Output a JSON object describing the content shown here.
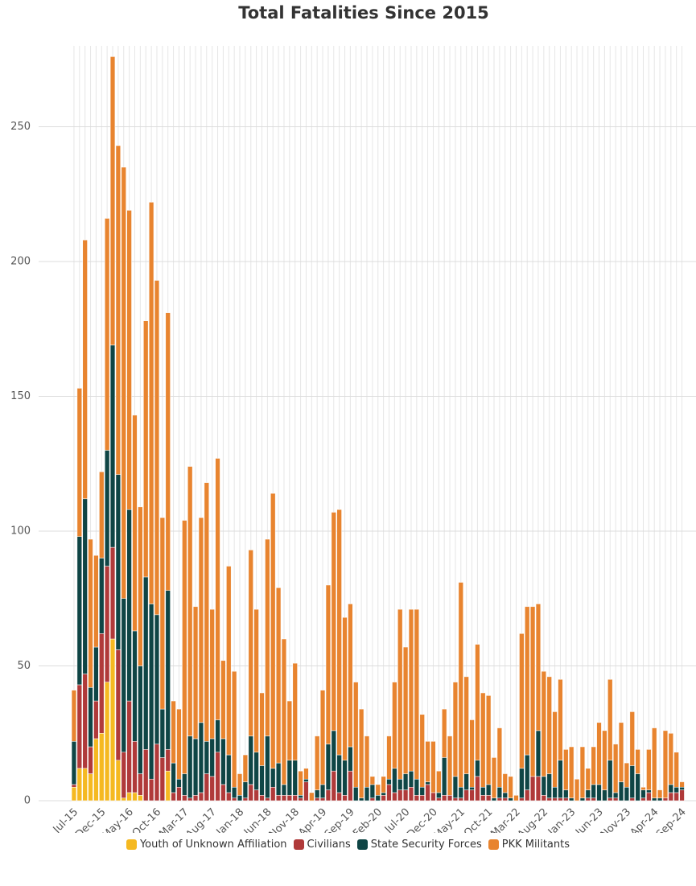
{
  "chart_data": {
    "type": "stacked_bar",
    "title": "Total Fatalities Since 2015",
    "categories": [
      "Jul-15",
      null,
      null,
      null,
      null,
      "Dec-15",
      null,
      null,
      null,
      null,
      "May-16",
      null,
      null,
      null,
      null,
      "Oct-16",
      null,
      null,
      null,
      null,
      "Mar-17",
      null,
      null,
      null,
      null,
      "Aug-17",
      null,
      null,
      null,
      null,
      "Jan-18",
      null,
      null,
      null,
      null,
      "Jun-18",
      null,
      null,
      null,
      null,
      "Nov-18",
      null,
      null,
      null,
      null,
      "Apr-19",
      null,
      null,
      null,
      null,
      "Sep-19",
      null,
      null,
      null,
      null,
      "Feb-20",
      null,
      null,
      null,
      null,
      "Jul-20",
      null,
      null,
      null,
      null,
      "Dec-20",
      null,
      null,
      null,
      null,
      "May-21",
      null,
      null,
      null,
      null,
      "Oct-21",
      null,
      null,
      null,
      null,
      "Mar-22",
      null,
      null,
      null,
      null,
      "Aug-22",
      null,
      null,
      null,
      null,
      "Jan-23",
      null,
      null,
      null,
      null,
      "Jun-23",
      null,
      null,
      null,
      null,
      "Nov-23",
      null,
      null,
      null,
      null,
      "Apr-24",
      null,
      null,
      null,
      null,
      "Sep-24"
    ],
    "series": [
      {
        "name": "Youth of Unknown Affiliation",
        "color": "#f5b921",
        "values": [
          5,
          12,
          12,
          10,
          23,
          25,
          44,
          60,
          15,
          1,
          3,
          3,
          2,
          0,
          0,
          0,
          0,
          11,
          0,
          0,
          0,
          0,
          0,
          0,
          0,
          0,
          0,
          0,
          0,
          0,
          0,
          0,
          0,
          0,
          0,
          0,
          0,
          0,
          0,
          0,
          0,
          0,
          0,
          0,
          0,
          0,
          0,
          0,
          0,
          0,
          0,
          0,
          0,
          0,
          0,
          0,
          0,
          0,
          0,
          0,
          0,
          0,
          0,
          0,
          0,
          0,
          0,
          0,
          0,
          0,
          0,
          0,
          0,
          0,
          0,
          0,
          0,
          0,
          0,
          0,
          0,
          0,
          0,
          0,
          0,
          0,
          0,
          0,
          0,
          0,
          0,
          0,
          0,
          0,
          0,
          0,
          0,
          0,
          0,
          0,
          0,
          0,
          0,
          0,
          0,
          0,
          0,
          0,
          0,
          0,
          0
        ]
      },
      {
        "name": "Civilians",
        "color": "#b03a3a",
        "values": [
          1,
          31,
          35,
          10,
          14,
          37,
          43,
          34,
          41,
          17,
          34,
          19,
          8,
          19,
          8,
          21,
          16,
          8,
          3,
          5,
          2,
          1,
          2,
          3,
          10,
          9,
          18,
          6,
          3,
          1,
          0,
          1,
          6,
          4,
          2,
          1,
          5,
          2,
          2,
          2,
          2,
          1,
          7,
          0,
          1,
          1,
          4,
          11,
          3,
          2,
          11,
          0,
          0,
          0,
          1,
          0,
          2,
          6,
          3,
          4,
          4,
          5,
          2,
          2,
          6,
          3,
          1,
          2,
          2,
          1,
          1,
          4,
          4,
          9,
          2,
          2,
          0,
          1,
          1,
          0,
          0,
          1,
          4,
          9,
          9,
          2,
          1,
          1,
          1,
          1,
          0,
          0,
          0,
          1,
          1,
          0,
          0,
          1,
          1,
          0,
          0,
          1,
          0,
          1,
          3,
          0,
          0,
          1,
          3,
          3,
          4
        ]
      },
      {
        "name": "State Security Forces",
        "color": "#0f4545",
        "values": [
          16,
          55,
          65,
          22,
          20,
          28,
          43,
          75,
          65,
          57,
          71,
          41,
          40,
          64,
          65,
          48,
          18,
          59,
          11,
          3,
          8,
          23,
          21,
          26,
          12,
          14,
          12,
          17,
          14,
          4,
          2,
          6,
          18,
          14,
          11,
          23,
          7,
          12,
          4,
          13,
          13,
          1,
          1,
          0,
          3,
          5,
          17,
          15,
          14,
          13,
          9,
          5,
          1,
          5,
          5,
          2,
          1,
          2,
          9,
          4,
          6,
          6,
          6,
          3,
          1,
          0,
          2,
          14,
          0,
          8,
          4,
          6,
          1,
          6,
          3,
          4,
          1,
          4,
          2,
          1,
          0,
          11,
          13,
          0,
          17,
          7,
          9,
          4,
          14,
          3,
          1,
          0,
          1,
          3,
          5,
          6,
          4,
          14,
          2,
          7,
          5,
          12,
          10,
          3,
          1,
          1,
          1,
          0,
          3,
          2,
          1
        ]
      },
      {
        "name": "PKK Militants",
        "color": "#e8842f",
        "values": [
          19,
          55,
          96,
          55,
          34,
          32,
          86,
          107,
          122,
          160,
          111,
          80,
          59,
          95,
          149,
          124,
          71,
          103,
          23,
          26,
          94,
          100,
          49,
          76,
          96,
          48,
          97,
          29,
          70,
          43,
          8,
          10,
          69,
          53,
          27,
          73,
          102,
          65,
          54,
          22,
          36,
          9,
          4,
          3,
          20,
          35,
          59,
          81,
          91,
          53,
          53,
          39,
          33,
          19,
          3,
          4,
          6,
          16,
          32,
          63,
          47,
          60,
          63,
          27,
          15,
          19,
          8,
          18,
          22,
          35,
          76,
          36,
          25,
          43,
          35,
          33,
          15,
          22,
          7,
          8,
          2,
          50,
          55,
          63,
          47,
          39,
          36,
          28,
          30,
          15,
          19,
          8,
          19,
          8,
          14,
          23,
          22,
          30,
          18,
          22,
          9,
          20,
          9,
          1,
          15,
          26,
          3,
          25,
          19,
          13,
          2
        ]
      }
    ],
    "ylim": [
      0,
      280
    ],
    "yticks": [
      0,
      50,
      100,
      150,
      200,
      250
    ],
    "grid": true,
    "legend": "bottom"
  }
}
